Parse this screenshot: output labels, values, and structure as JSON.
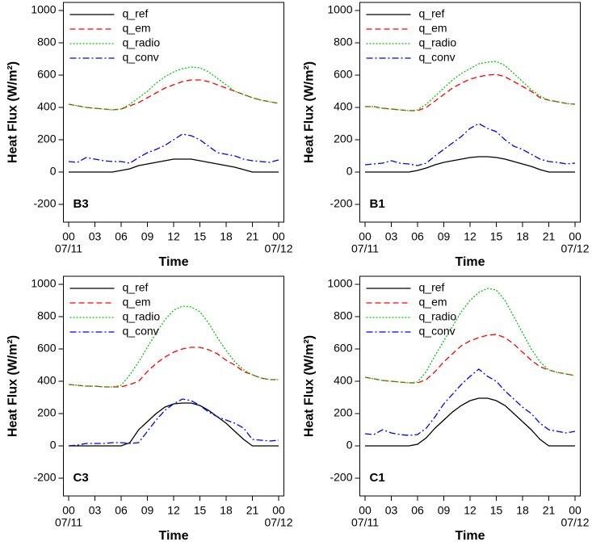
{
  "chart_data": [
    {
      "type": "line",
      "label": "B3",
      "xlabel": "Time",
      "ylabel": "Heat Flux (W/m²)",
      "x": [
        0,
        1,
        2,
        3,
        4,
        5,
        6,
        7,
        8,
        9,
        10,
        11,
        12,
        13,
        14,
        15,
        16,
        17,
        18,
        19,
        20,
        21,
        22,
        23,
        24
      ],
      "xlim": [
        -0.6,
        24.6
      ],
      "ylim": [
        -310,
        1050
      ],
      "xticks": [
        {
          "value": 0,
          "label": "00"
        },
        {
          "value": 3,
          "label": "03"
        },
        {
          "value": 6,
          "label": "06"
        },
        {
          "value": 9,
          "label": "09"
        },
        12,
        15,
        18,
        21,
        {
          "value": 24,
          "label": "00"
        }
      ],
      "date_ticks": [
        {
          "value": 0,
          "label": "07/11"
        },
        {
          "value": 24,
          "label": "07/12"
        }
      ],
      "yticks": [
        -200,
        0,
        200,
        400,
        600,
        800,
        1000
      ],
      "legend": "upper left",
      "series": [
        {
          "name": "q_ref",
          "color": "#000000",
          "style": "solid",
          "values": [
            0,
            0,
            0,
            0,
            0,
            0,
            10,
            20,
            40,
            50,
            60,
            70,
            80,
            80,
            80,
            70,
            60,
            50,
            40,
            30,
            15,
            0,
            0,
            0,
            0
          ]
        },
        {
          "name": "q_em",
          "color": "#ff0000",
          "style": "dashed",
          "values": [
            420,
            410,
            400,
            395,
            390,
            385,
            390,
            410,
            430,
            460,
            490,
            520,
            540,
            560,
            570,
            570,
            560,
            540,
            520,
            500,
            480,
            460,
            445,
            435,
            425
          ]
        },
        {
          "name": "q_radio",
          "color": "#00cc00",
          "style": "dotted",
          "values": [
            420,
            410,
            400,
            395,
            390,
            385,
            390,
            420,
            460,
            500,
            550,
            590,
            620,
            640,
            650,
            645,
            620,
            580,
            540,
            500,
            480,
            460,
            445,
            435,
            425
          ]
        },
        {
          "name": "q_conv",
          "color": "#0000ff",
          "style": "dashdot",
          "values": [
            65,
            60,
            90,
            80,
            70,
            65,
            65,
            55,
            90,
            120,
            140,
            165,
            200,
            235,
            225,
            200,
            160,
            120,
            110,
            100,
            80,
            70,
            65,
            60,
            75
          ]
        }
      ]
    },
    {
      "type": "line",
      "label": "B1",
      "xlabel": "Time",
      "ylabel": "Heat Flux (W/m²)",
      "x": [
        0,
        1,
        2,
        3,
        4,
        5,
        6,
        7,
        8,
        9,
        10,
        11,
        12,
        13,
        14,
        15,
        16,
        17,
        18,
        19,
        20,
        21,
        22,
        23,
        24
      ],
      "xlim": [
        -0.6,
        24.6
      ],
      "ylim": [
        -310,
        1050
      ],
      "xticks": [
        {
          "value": 0,
          "label": "00"
        },
        {
          "value": 3,
          "label": "03"
        },
        {
          "value": 6,
          "label": "06"
        },
        {
          "value": 9,
          "label": "09"
        },
        12,
        15,
        18,
        21,
        {
          "value": 24,
          "label": "00"
        }
      ],
      "date_ticks": [
        {
          "value": 0,
          "label": "07/11"
        },
        {
          "value": 24,
          "label": "07/12"
        }
      ],
      "yticks": [
        -200,
        0,
        200,
        400,
        600,
        800,
        1000
      ],
      "legend": "upper left",
      "series": [
        {
          "name": "q_ref",
          "color": "#000000",
          "style": "solid",
          "values": [
            0,
            0,
            0,
            0,
            0,
            0,
            10,
            25,
            45,
            60,
            70,
            80,
            90,
            95,
            95,
            90,
            80,
            65,
            50,
            35,
            15,
            0,
            0,
            0,
            0
          ]
        },
        {
          "name": "q_em",
          "color": "#ff0000",
          "style": "dashed",
          "values": [
            405,
            405,
            395,
            390,
            385,
            380,
            380,
            400,
            440,
            480,
            520,
            550,
            575,
            590,
            600,
            605,
            590,
            560,
            530,
            500,
            460,
            445,
            435,
            425,
            420
          ]
        },
        {
          "name": "q_radio",
          "color": "#00cc00",
          "style": "dotted",
          "values": [
            405,
            405,
            395,
            390,
            385,
            380,
            385,
            420,
            470,
            520,
            570,
            610,
            640,
            670,
            680,
            685,
            660,
            610,
            560,
            510,
            470,
            445,
            435,
            425,
            420
          ]
        },
        {
          "name": "q_conv",
          "color": "#0000ff",
          "style": "dashdot",
          "values": [
            45,
            50,
            55,
            70,
            55,
            50,
            40,
            55,
            100,
            140,
            180,
            220,
            270,
            300,
            270,
            250,
            200,
            160,
            140,
            110,
            80,
            65,
            60,
            50,
            55
          ]
        }
      ]
    },
    {
      "type": "line",
      "label": "C3",
      "xlabel": "Time",
      "ylabel": "Heat Flux (W/m²)",
      "x": [
        0,
        1,
        2,
        3,
        4,
        5,
        6,
        7,
        8,
        9,
        10,
        11,
        12,
        13,
        14,
        15,
        16,
        17,
        18,
        19,
        20,
        21,
        22,
        23,
        24
      ],
      "xlim": [
        -0.6,
        24.6
      ],
      "ylim": [
        -310,
        1050
      ],
      "xticks": [
        {
          "value": 0,
          "label": "00"
        },
        {
          "value": 3,
          "label": "03"
        },
        {
          "value": 6,
          "label": "06"
        },
        {
          "value": 9,
          "label": "09"
        },
        12,
        15,
        18,
        21,
        {
          "value": 24,
          "label": "00"
        }
      ],
      "date_ticks": [
        {
          "value": 0,
          "label": "07/11"
        },
        {
          "value": 24,
          "label": "07/12"
        }
      ],
      "yticks": [
        -200,
        0,
        200,
        400,
        600,
        800,
        1000
      ],
      "legend": "upper left",
      "series": [
        {
          "name": "q_ref",
          "color": "#000000",
          "style": "solid",
          "values": [
            0,
            0,
            0,
            0,
            0,
            0,
            0,
            20,
            100,
            150,
            200,
            240,
            260,
            265,
            265,
            250,
            220,
            180,
            140,
            90,
            40,
            0,
            0,
            0,
            0
          ]
        },
        {
          "name": "q_em",
          "color": "#ff0000",
          "style": "dashed",
          "values": [
            380,
            375,
            370,
            370,
            365,
            365,
            365,
            380,
            400,
            460,
            510,
            550,
            580,
            600,
            610,
            610,
            595,
            570,
            530,
            500,
            460,
            440,
            420,
            410,
            410
          ]
        },
        {
          "name": "q_radio",
          "color": "#00cc00",
          "style": "dotted",
          "values": [
            380,
            375,
            370,
            370,
            365,
            365,
            375,
            440,
            520,
            610,
            700,
            780,
            840,
            865,
            860,
            830,
            760,
            670,
            590,
            520,
            470,
            440,
            420,
            410,
            410
          ]
        },
        {
          "name": "q_conv",
          "color": "#0000ff",
          "style": "dashdot",
          "values": [
            0,
            5,
            15,
            15,
            15,
            20,
            20,
            15,
            20,
            90,
            160,
            220,
            260,
            290,
            280,
            250,
            210,
            180,
            160,
            140,
            110,
            40,
            35,
            30,
            35
          ]
        }
      ]
    },
    {
      "type": "line",
      "label": "C1",
      "xlabel": "Time",
      "ylabel": "Heat Flux (W/m²)",
      "x": [
        0,
        1,
        2,
        3,
        4,
        5,
        6,
        7,
        8,
        9,
        10,
        11,
        12,
        13,
        14,
        15,
        16,
        17,
        18,
        19,
        20,
        21,
        22,
        23,
        24
      ],
      "xlim": [
        -0.6,
        24.6
      ],
      "ylim": [
        -310,
        1050
      ],
      "xticks": [
        {
          "value": 0,
          "label": "00"
        },
        {
          "value": 3,
          "label": "03"
        },
        {
          "value": 6,
          "label": "06"
        },
        {
          "value": 9,
          "label": "09"
        },
        12,
        15,
        18,
        21,
        {
          "value": 24,
          "label": "00"
        }
      ],
      "date_ticks": [
        {
          "value": 0,
          "label": "07/11"
        },
        {
          "value": 24,
          "label": "07/12"
        }
      ],
      "yticks": [
        -200,
        0,
        200,
        400,
        600,
        800,
        1000
      ],
      "legend": "upper left",
      "series": [
        {
          "name": "q_ref",
          "color": "#000000",
          "style": "solid",
          "values": [
            0,
            0,
            0,
            0,
            0,
            0,
            10,
            50,
            110,
            160,
            210,
            250,
            280,
            295,
            295,
            280,
            250,
            200,
            150,
            100,
            40,
            0,
            0,
            0,
            0
          ]
        },
        {
          "name": "q_em",
          "color": "#ff0000",
          "style": "dashed",
          "values": [
            425,
            415,
            405,
            400,
            395,
            390,
            390,
            410,
            460,
            520,
            570,
            620,
            650,
            670,
            685,
            690,
            670,
            630,
            580,
            530,
            490,
            470,
            455,
            445,
            435
          ]
        },
        {
          "name": "q_radio",
          "color": "#00cc00",
          "style": "dotted",
          "values": [
            425,
            415,
            405,
            400,
            395,
            390,
            395,
            460,
            560,
            650,
            740,
            830,
            900,
            950,
            975,
            965,
            900,
            800,
            700,
            600,
            520,
            470,
            455,
            445,
            435
          ]
        },
        {
          "name": "q_conv",
          "color": "#0000ff",
          "style": "dashdot",
          "values": [
            75,
            70,
            100,
            80,
            70,
            65,
            70,
            110,
            180,
            260,
            320,
            380,
            430,
            475,
            430,
            400,
            340,
            290,
            240,
            200,
            140,
            100,
            90,
            80,
            90
          ]
        }
      ]
    }
  ]
}
